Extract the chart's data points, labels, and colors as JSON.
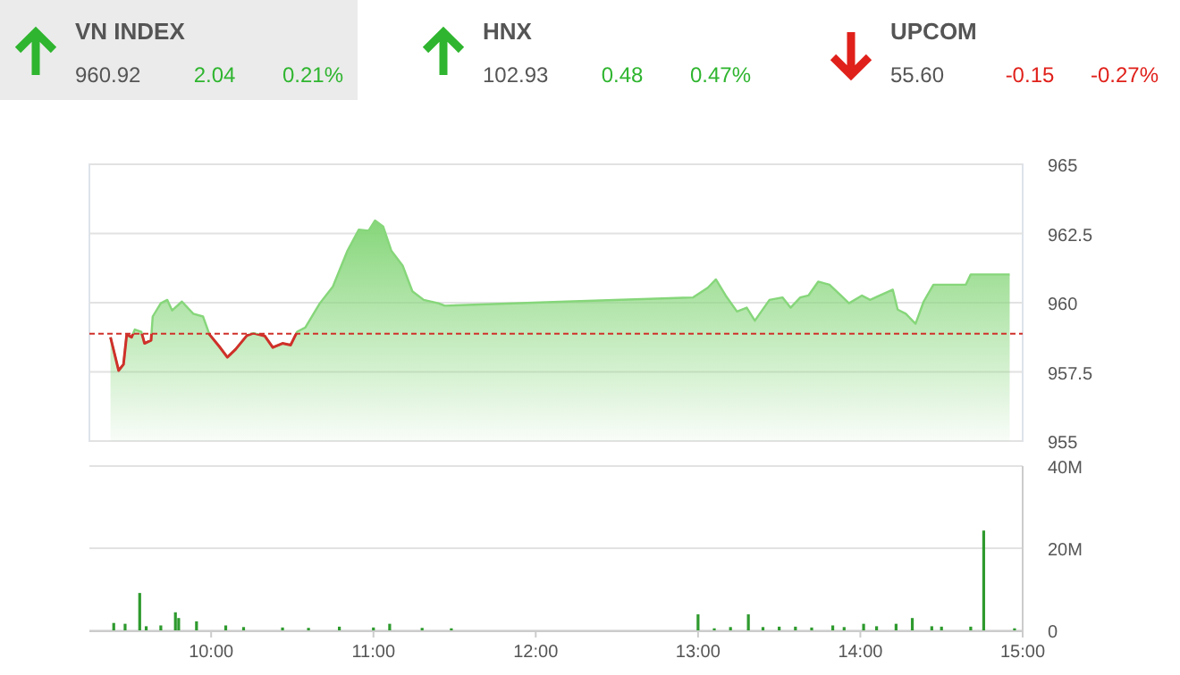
{
  "chart_data": [
    {
      "type": "other",
      "annotations": [
        "VN INDEX",
        "960.92",
        "2.04",
        "0.21%",
        "HNX",
        "102.93",
        "0.48",
        "0.47%",
        "UPCOM",
        "55.60",
        "-0.15",
        "-0.27%"
      ],
      "colors": [
        "#2fb52f",
        "#2fb52f",
        "#e0201a"
      ]
    },
    {
      "type": "area",
      "x": [
        9.38,
        9.43,
        9.46,
        9.48,
        9.51,
        9.53,
        9.57,
        9.59,
        9.63,
        9.64,
        9.69,
        9.73,
        9.76,
        9.82,
        9.89,
        9.95,
        9.99,
        10.05,
        10.1,
        10.15,
        10.22,
        10.26,
        10.33,
        10.38,
        10.44,
        10.49,
        10.53,
        10.58,
        10.67,
        10.75,
        10.84,
        10.91,
        10.97,
        11.01,
        11.06,
        11.11,
        11.18,
        11.24,
        11.31,
        11.4,
        11.44,
        12.19,
        12.97,
        13.06,
        13.11,
        13.17,
        13.24,
        13.3,
        13.35,
        13.44,
        13.52,
        13.57,
        13.63,
        13.68,
        13.74,
        13.81,
        13.88,
        13.93,
        14.01,
        14.06,
        14.12,
        14.2,
        14.23,
        14.28,
        14.34,
        14.39,
        14.45,
        14.65,
        14.68,
        14.92
      ],
      "series": [
        {
          "color": "#86d67a",
          "values": [
            958.75,
            957.55,
            957.77,
            958.85,
            958.75,
            959.03,
            958.95,
            958.53,
            958.64,
            959.5,
            959.98,
            960.1,
            959.72,
            960.04,
            959.6,
            959.5,
            958.85,
            958.42,
            958.03,
            958.31,
            958.81,
            958.9,
            958.8,
            958.38,
            958.53,
            958.47,
            958.95,
            959.1,
            959.98,
            960.58,
            961.88,
            962.64,
            962.6,
            962.97,
            962.75,
            961.88,
            961.34,
            960.41,
            960.1,
            959.98,
            959.89,
            960.04,
            960.19,
            960.54,
            960.84,
            960.26,
            959.68,
            959.82,
            959.35,
            960.1,
            960.19,
            959.82,
            960.19,
            960.26,
            960.76,
            960.65,
            960.26,
            959.98,
            960.26,
            960.1,
            960.26,
            960.47,
            959.75,
            959.6,
            959.24,
            960.04,
            960.65,
            960.65,
            961.02,
            961.02
          ]
        }
      ],
      "xlim": [
        9.25,
        15
      ],
      "ylim": [
        955,
        965
      ],
      "yticks": [
        965,
        962.5,
        960,
        957.5,
        955
      ],
      "grid": "y",
      "tick_labels": "y",
      "ref_lines": [
        {
          "axis": "y",
          "value": 958.88,
          "color": "#d0302a",
          "line_style": "dashed"
        }
      ]
    },
    {
      "type": "bar",
      "x": [
        9.4,
        9.47,
        9.56,
        9.6,
        9.69,
        9.78,
        9.8,
        9.91,
        10.09,
        10.2,
        10.44,
        10.6,
        10.79,
        11.0,
        11.1,
        11.3,
        11.48,
        13.0,
        13.1,
        13.2,
        13.31,
        13.4,
        13.5,
        13.6,
        13.7,
        13.83,
        13.9,
        14.02,
        14.1,
        14.22,
        14.32,
        14.44,
        14.5,
        14.68,
        14.76,
        14.95
      ],
      "series": [
        {
          "color": "#2e9a2e",
          "values": [
            1.8,
            1.6,
            9.1,
            1.0,
            1.2,
            4.4,
            3.0,
            2.2,
            1.2,
            0.8,
            0.7,
            0.6,
            0.9,
            0.7,
            1.6,
            0.6,
            0.5,
            3.9,
            0.5,
            0.8,
            3.9,
            0.8,
            0.9,
            0.9,
            0.7,
            1.2,
            0.8,
            1.6,
            1.0,
            1.6,
            3.0,
            1.0,
            0.9,
            0.9,
            24.3,
            0.5
          ]
        }
      ],
      "xlim": [
        9.25,
        15
      ],
      "xticks": [
        {
          "value": 10,
          "label": "10:00"
        },
        {
          "value": 11,
          "label": "11:00"
        },
        {
          "value": 12,
          "label": "12:00"
        },
        {
          "value": 13,
          "label": "13:00"
        },
        {
          "value": 14,
          "label": "14:00"
        },
        {
          "value": 15,
          "label": "15:00"
        }
      ],
      "ylim": [
        0,
        40
      ],
      "yticks": [
        {
          "value": 0,
          "label": "0"
        },
        {
          "value": 20,
          "label": "20M"
        },
        {
          "value": 40,
          "label": "40M"
        }
      ],
      "grid": "y"
    }
  ]
}
